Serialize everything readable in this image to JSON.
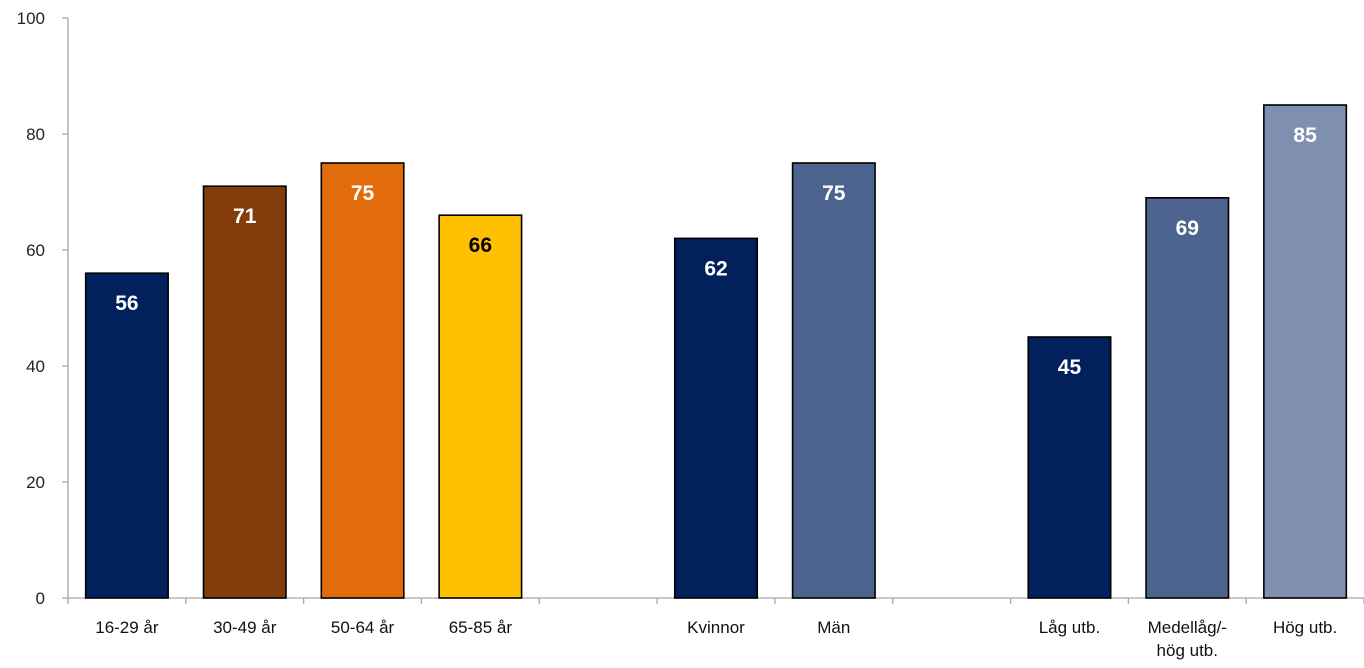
{
  "chart_data": {
    "type": "bar",
    "title": "",
    "xlabel": "",
    "ylabel": "",
    "ylim": [
      0,
      100
    ],
    "yticks": [
      0,
      20,
      40,
      60,
      80,
      100
    ],
    "grid": false,
    "legend": "none",
    "groups": [
      {
        "bars": [
          {
            "label": "16-29 år",
            "value": 56,
            "color": "#02205C",
            "label_color": "#FFFFFF"
          },
          {
            "label": "30-49 år",
            "value": 71,
            "color": "#833C0B",
            "label_color": "#FFFFFF"
          },
          {
            "label": "50-64 år",
            "value": 75,
            "color": "#E36C0A",
            "label_color": "#FFFFFF"
          },
          {
            "label": "65-85 år",
            "value": 66,
            "color": "#FFC000",
            "label_color": "#000000"
          }
        ]
      },
      {
        "bars": [
          {
            "label": "Kvinnor",
            "value": 62,
            "color": "#02205C",
            "label_color": "#FFFFFF"
          },
          {
            "label": "Män",
            "value": 75,
            "color": "#4B638D",
            "label_color": "#FFFFFF"
          }
        ]
      },
      {
        "bars": [
          {
            "label": "Låg utb.",
            "value": 45,
            "color": "#02205C",
            "label_color": "#FFFFFF"
          },
          {
            "label": "Medellåg/-\nhög utb.",
            "value": 69,
            "color": "#4B638D",
            "label_color": "#FFFFFF"
          },
          {
            "label": "Hög utb.",
            "value": 85,
            "color": "#7F8FB0",
            "label_color": "#FFFFFF"
          }
        ]
      }
    ]
  }
}
